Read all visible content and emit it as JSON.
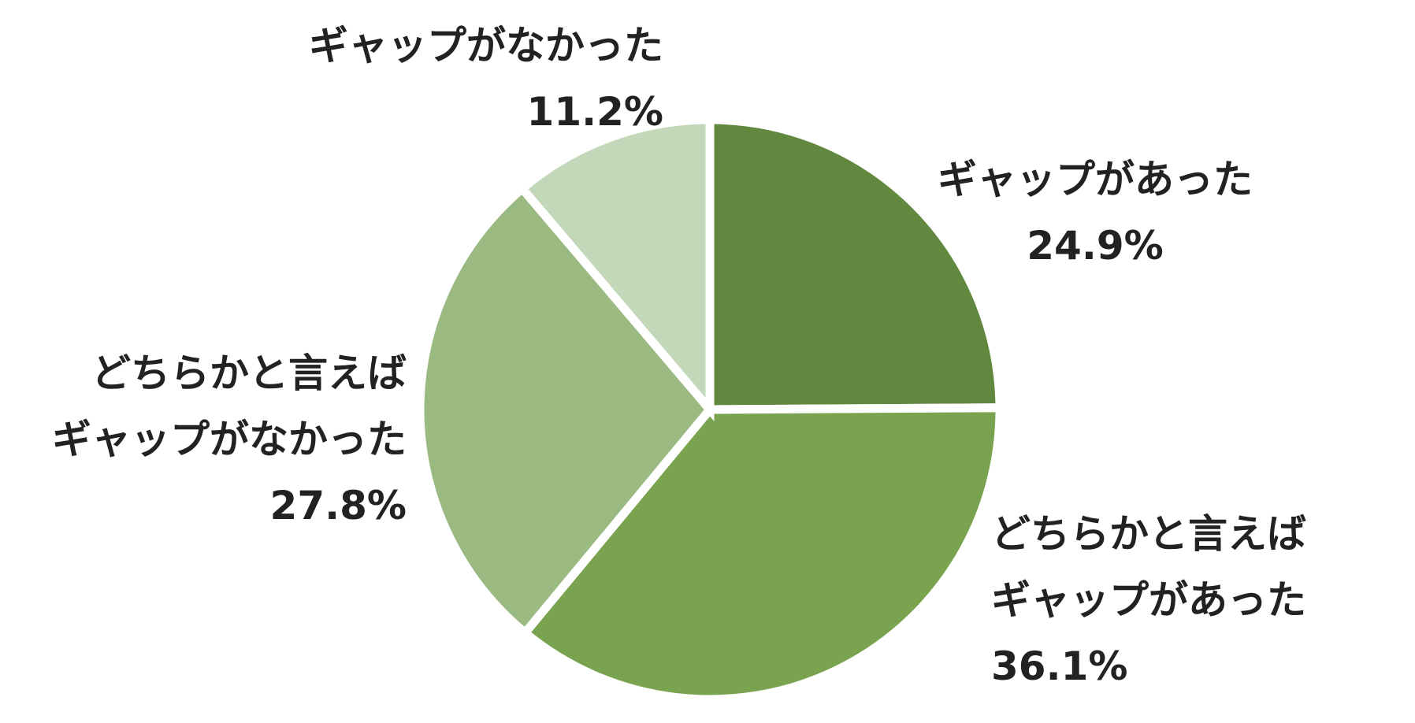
{
  "chart_data": {
    "type": "pie",
    "categories": [
      "ギャップがあった",
      "どちらかと言えば\nギャップがあった",
      "どちらかと言えば\nギャップがなかった",
      "ギャップがなかった"
    ],
    "values": [
      24.9,
      36.1,
      27.8,
      11.2
    ],
    "value_labels": [
      "24.9%",
      "36.1%",
      "27.8%",
      "11.2%"
    ],
    "colors": [
      "#62883f",
      "#7aa350",
      "#9aba82",
      "#c3d7b9"
    ]
  }
}
